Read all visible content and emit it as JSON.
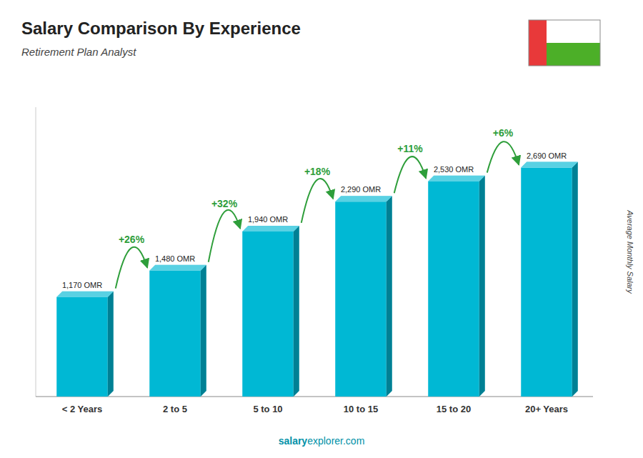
{
  "chart_data": {
    "type": "bar",
    "title": "Salary Comparison By Experience",
    "subtitle": "Retirement Plan Analyst",
    "y_label": "Average Monthly Salary",
    "categories": [
      "< 2 Years",
      "2 to 5",
      "5 to 10",
      "10 to 15",
      "15 to 20",
      "20+ Years"
    ],
    "values": [
      1170,
      1480,
      1940,
      2290,
      2530,
      2690
    ],
    "value_labels": [
      "1,170 OMR",
      "1,480 OMR",
      "1,940 OMR",
      "2,290 OMR",
      "2,530 OMR",
      "2,690 OMR"
    ],
    "data_labels": true,
    "annotations": [
      "+26%",
      "+32%",
      "+18%",
      "+11%",
      "+6%"
    ],
    "footer": [
      "salary",
      "explorer.com"
    ],
    "color": "#00b8d4",
    "ylim": [
      0,
      3400
    ],
    "yticks": [
      0
    ],
    "tick_labels": "x",
    "grid": false
  }
}
